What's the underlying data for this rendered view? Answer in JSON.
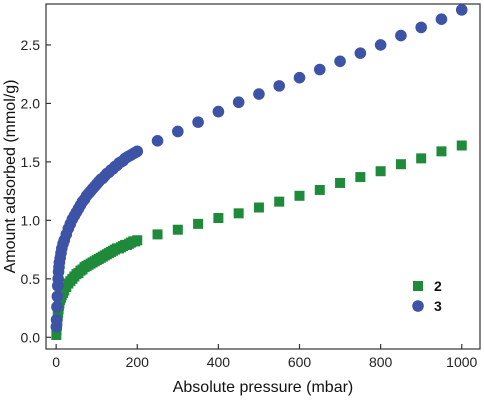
{
  "chart_data": {
    "type": "scatter",
    "xlabel": "Absolute pressure (mbar)",
    "ylabel": "Amount adsorbed (mmol/g)",
    "xlim": [
      -25,
      1045
    ],
    "ylim": [
      -0.1,
      2.85
    ],
    "xticks": [
      "0",
      "200",
      "400",
      "600",
      "800",
      "1000"
    ],
    "yticks": [
      "0.0",
      "0.5",
      "1.0",
      "1.5",
      "2.0",
      "2.5"
    ],
    "legend_position": "bottom-right",
    "series": [
      {
        "name": "2",
        "color": "#1e8a3a",
        "marker": "square",
        "x": [
          0.5,
          1,
          2,
          3,
          4,
          5,
          6,
          7,
          8,
          10,
          12,
          14,
          17,
          20,
          25,
          30,
          35,
          40,
          45,
          50,
          55,
          60,
          65,
          70,
          75,
          80,
          85,
          90,
          95,
          100,
          105,
          110,
          115,
          120,
          125,
          130,
          135,
          140,
          145,
          150,
          155,
          160,
          165,
          170,
          175,
          180,
          185,
          190,
          195,
          200,
          250,
          300,
          350,
          400,
          450,
          500,
          550,
          600,
          650,
          700,
          750,
          800,
          850,
          900,
          950,
          1000
        ],
        "y": [
          0.02,
          0.06,
          0.1,
          0.14,
          0.18,
          0.21,
          0.24,
          0.27,
          0.29,
          0.32,
          0.34,
          0.36,
          0.38,
          0.4,
          0.43,
          0.46,
          0.48,
          0.5,
          0.52,
          0.54,
          0.55,
          0.57,
          0.58,
          0.6,
          0.61,
          0.62,
          0.63,
          0.64,
          0.65,
          0.66,
          0.67,
          0.68,
          0.69,
          0.7,
          0.71,
          0.72,
          0.73,
          0.74,
          0.75,
          0.76,
          0.76,
          0.77,
          0.78,
          0.79,
          0.79,
          0.8,
          0.81,
          0.82,
          0.82,
          0.83,
          0.88,
          0.92,
          0.97,
          1.02,
          1.06,
          1.11,
          1.16,
          1.21,
          1.26,
          1.32,
          1.37,
          1.42,
          1.48,
          1.53,
          1.59,
          1.64
        ]
      },
      {
        "name": "3",
        "color": "#3c53a6",
        "marker": "circle",
        "x": [
          0.5,
          1,
          2,
          3,
          4,
          5,
          6,
          7,
          8,
          10,
          12,
          14,
          17,
          20,
          25,
          30,
          35,
          40,
          45,
          50,
          55,
          60,
          65,
          70,
          75,
          80,
          85,
          90,
          95,
          100,
          105,
          110,
          115,
          120,
          125,
          130,
          135,
          140,
          145,
          150,
          155,
          160,
          165,
          170,
          175,
          180,
          185,
          190,
          195,
          200,
          250,
          300,
          350,
          400,
          450,
          500,
          550,
          600,
          650,
          700,
          750,
          800,
          850,
          900,
          950,
          1000
        ],
        "y": [
          0.09,
          0.15,
          0.26,
          0.35,
          0.44,
          0.5,
          0.56,
          0.6,
          0.64,
          0.68,
          0.72,
          0.76,
          0.8,
          0.83,
          0.88,
          0.93,
          0.97,
          1.01,
          1.04,
          1.07,
          1.1,
          1.13,
          1.16,
          1.18,
          1.21,
          1.23,
          1.25,
          1.27,
          1.29,
          1.31,
          1.33,
          1.35,
          1.36,
          1.38,
          1.4,
          1.41,
          1.43,
          1.44,
          1.46,
          1.47,
          1.49,
          1.5,
          1.51,
          1.53,
          1.54,
          1.55,
          1.56,
          1.57,
          1.58,
          1.59,
          1.68,
          1.76,
          1.84,
          1.93,
          2.01,
          2.08,
          2.15,
          2.22,
          2.29,
          2.36,
          2.43,
          2.5,
          2.58,
          2.65,
          2.72,
          2.8
        ]
      }
    ]
  }
}
